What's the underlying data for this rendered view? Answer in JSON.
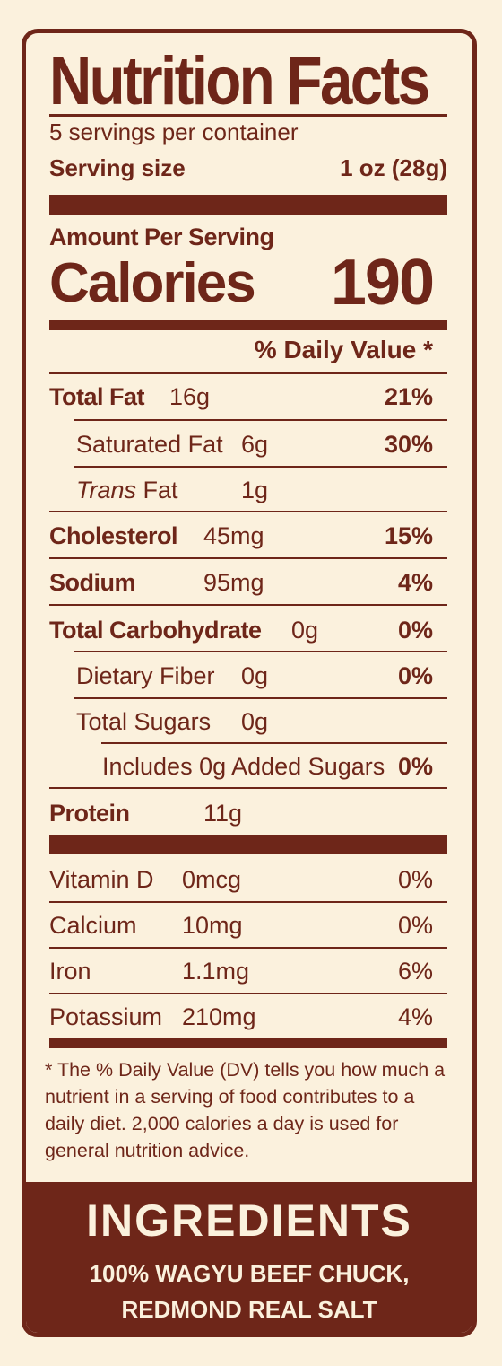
{
  "title": "Nutrition Facts",
  "servings_per_container": "5 servings per container",
  "serving_size": {
    "label": "Serving size",
    "value": "1 oz (28g)"
  },
  "amount_per_serving": "Amount Per Serving",
  "calories": {
    "label": "Calories",
    "value": "190"
  },
  "daily_value_header": "% Daily Value *",
  "nutrients": [
    {
      "name": "Total Fat",
      "amount": "16g",
      "dv": "21%"
    },
    {
      "name": "Saturated Fat",
      "amount": "6g",
      "dv": "30%"
    },
    {
      "name_italic": "Trans",
      "name": " Fat",
      "amount": "1g",
      "dv": ""
    },
    {
      "name": "Cholesterol",
      "amount": "45mg",
      "dv": "15%"
    },
    {
      "name": "Sodium",
      "amount": "95mg",
      "dv": "4%"
    },
    {
      "name": "Total Carbohydrate",
      "amount": "0g",
      "dv": "0%"
    },
    {
      "name": "Dietary Fiber",
      "amount": "0g",
      "dv": "0%"
    },
    {
      "name": "Total Sugars",
      "amount": "0g",
      "dv": ""
    },
    {
      "name": "Includes 0g Added Sugars",
      "amount": "",
      "dv": "0%"
    },
    {
      "name": "Protein",
      "amount": "11g",
      "dv": ""
    }
  ],
  "vitamins": [
    {
      "name": "Vitamin D",
      "amount": "0mcg",
      "dv": "0%"
    },
    {
      "name": "Calcium",
      "amount": "10mg",
      "dv": "0%"
    },
    {
      "name": "Iron",
      "amount": "1.1mg",
      "dv": "6%"
    },
    {
      "name": "Potassium",
      "amount": "210mg",
      "dv": "4%"
    }
  ],
  "footnote": "* The % Daily Value (DV) tells you how much a nutrient in a serving of food contributes to a daily diet. 2,000 calories a day is used for general nutrition advice.",
  "ingredients": {
    "title": "INGREDIENTS",
    "line1": "100% WAGYU BEEF CHUCK,",
    "line2": "REDMOND REAL SALT"
  },
  "colors": {
    "brown": "#6e2619",
    "cream": "#fbf1dd"
  }
}
